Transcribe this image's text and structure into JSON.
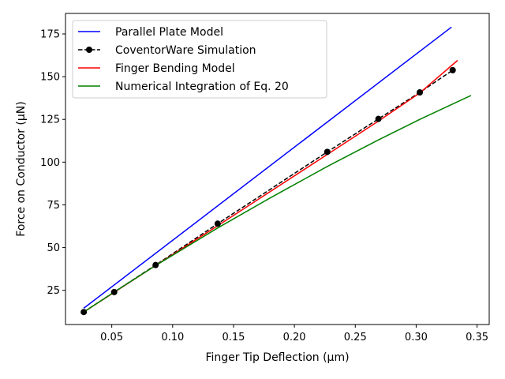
{
  "chart_data": {
    "type": "line",
    "title": "",
    "xlabel": "Finger Tip Deflection (μm)",
    "ylabel": "Force on Conductor (μN)",
    "xlim": [
      0.012,
      0.36
    ],
    "ylim": [
      5,
      187
    ],
    "xticks": [
      0.05,
      0.1,
      0.15,
      0.2,
      0.25,
      0.3,
      0.35
    ],
    "xtick_labels": [
      "0.05",
      "0.10",
      "0.15",
      "0.20",
      "0.25",
      "0.30",
      "0.35"
    ],
    "yticks": [
      25,
      50,
      75,
      100,
      125,
      150,
      175
    ],
    "ytick_labels": [
      "25",
      "50",
      "75",
      "100",
      "125",
      "150",
      "175"
    ],
    "grid": false,
    "legend_position": "top-left",
    "series": [
      {
        "name": "Parallel Plate Model",
        "color": "#0000ff",
        "style": "solid",
        "marker": "none",
        "x": [
          0.027,
          0.329
        ],
        "y": [
          14.5,
          179.0
        ]
      },
      {
        "name": "CoventorWare Simulation",
        "color": "#000000",
        "style": "dashed",
        "marker": "circle",
        "x": [
          0.027,
          0.052,
          0.086,
          0.137,
          0.227,
          0.269,
          0.303,
          0.33
        ],
        "y": [
          12.3,
          24.0,
          39.8,
          64.0,
          106.0,
          125.3,
          140.8,
          153.8
        ]
      },
      {
        "name": "Finger Bending Model",
        "color": "#ff0000",
        "style": "solid",
        "marker": "none",
        "x": [
          0.027,
          0.086,
          0.137,
          0.227,
          0.269,
          0.303,
          0.334
        ],
        "y": [
          12.3,
          39.5,
          62.8,
          104.5,
          124.0,
          140.5,
          159.5
        ]
      },
      {
        "name": "Numerical Integration of Eq. 20",
        "color": "#008000",
        "style": "solid",
        "marker": "none",
        "x": [
          0.027,
          0.052,
          0.086,
          0.137,
          0.18,
          0.227,
          0.269,
          0.303,
          0.345
        ],
        "y": [
          12.3,
          24.0,
          39.5,
          61.5,
          79.0,
          97.5,
          113.0,
          125.0,
          139.0
        ]
      }
    ]
  }
}
